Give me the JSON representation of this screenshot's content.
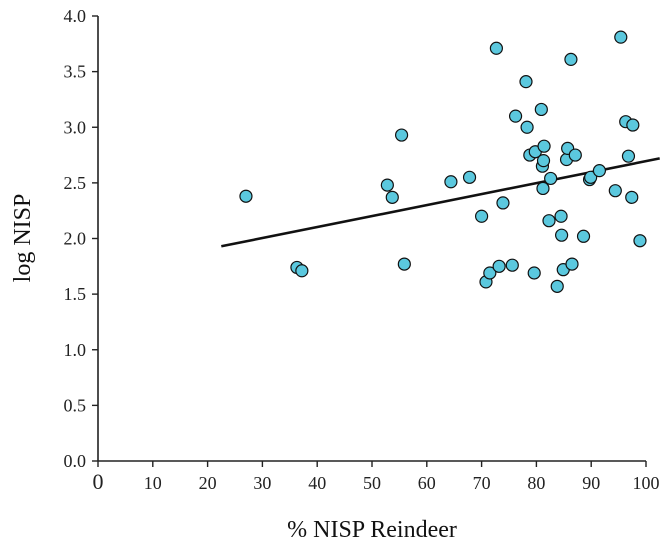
{
  "chart_data": {
    "type": "scatter",
    "xlabel": "% NISP Reindeer",
    "ylabel": "log NISP",
    "xlim": [
      0,
      100
    ],
    "ylim": [
      0,
      4.0
    ],
    "x_ticks": [
      "0",
      "10",
      "20",
      "30",
      "40",
      "50",
      "60",
      "70",
      "80",
      "90",
      "100"
    ],
    "y_ticks": [
      "0.0",
      "0.5",
      "1.0",
      "1.5",
      "2.0",
      "2.5",
      "3.0",
      "3.5",
      "4.0"
    ],
    "grid": false,
    "point_color": "#5bc8de",
    "line_color": "#111111",
    "series": [
      {
        "points": [
          [
            27.0,
            2.38
          ],
          [
            36.3,
            1.74
          ],
          [
            37.2,
            1.71
          ],
          [
            52.8,
            2.48
          ],
          [
            53.7,
            2.37
          ],
          [
            55.4,
            2.93
          ],
          [
            55.9,
            1.77
          ],
          [
            64.4,
            2.51
          ],
          [
            67.8,
            2.55
          ],
          [
            70.0,
            2.2
          ],
          [
            70.8,
            1.61
          ],
          [
            71.5,
            1.69
          ],
          [
            72.7,
            3.71
          ],
          [
            73.2,
            1.75
          ],
          [
            73.9,
            2.32
          ],
          [
            75.6,
            1.76
          ],
          [
            76.2,
            3.1
          ],
          [
            78.1,
            3.41
          ],
          [
            78.3,
            3.0
          ],
          [
            78.8,
            2.75
          ],
          [
            79.6,
            1.69
          ],
          [
            79.8,
            2.78
          ],
          [
            80.9,
            3.16
          ],
          [
            81.1,
            2.65
          ],
          [
            81.2,
            2.45
          ],
          [
            81.3,
            2.7
          ],
          [
            81.4,
            2.83
          ],
          [
            82.3,
            2.16
          ],
          [
            82.6,
            2.54
          ],
          [
            83.8,
            1.57
          ],
          [
            84.5,
            2.2
          ],
          [
            84.6,
            2.03
          ],
          [
            84.9,
            1.72
          ],
          [
            85.5,
            2.71
          ],
          [
            85.7,
            2.81
          ],
          [
            86.3,
            3.61
          ],
          [
            86.5,
            1.77
          ],
          [
            87.1,
            2.75
          ],
          [
            88.6,
            2.02
          ],
          [
            89.7,
            2.53
          ],
          [
            89.9,
            2.55
          ],
          [
            91.5,
            2.61
          ],
          [
            94.4,
            2.43
          ],
          [
            95.4,
            3.81
          ],
          [
            96.3,
            3.05
          ],
          [
            96.8,
            2.74
          ],
          [
            97.4,
            2.37
          ],
          [
            97.6,
            3.02
          ],
          [
            98.9,
            1.98
          ]
        ]
      }
    ],
    "trendline": {
      "x": [
        22.5,
        102.5
      ],
      "y": [
        1.93,
        2.72
      ]
    }
  }
}
